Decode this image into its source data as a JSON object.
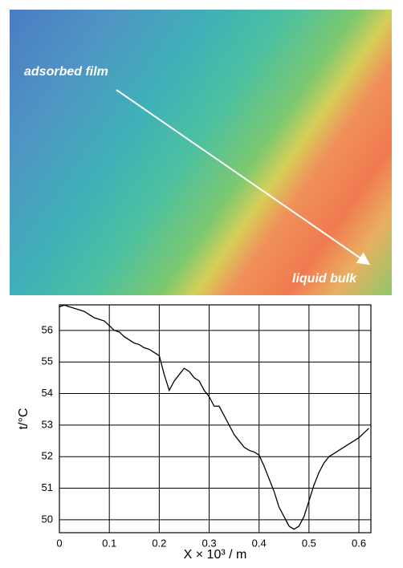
{
  "image": {
    "labels": [
      "adsorbed film",
      "liquid bulk"
    ]
  },
  "chart_data": {
    "type": "line",
    "y_label": "t/°C",
    "x_label": "X × 10³ / m",
    "color": "#000000",
    "grid": true,
    "x": [
      0,
      0.01,
      0.02,
      0.03,
      0.04,
      0.05,
      0.06,
      0.07,
      0.08,
      0.09,
      0.1,
      0.11,
      0.12,
      0.13,
      0.14,
      0.15,
      0.16,
      0.17,
      0.18,
      0.19,
      0.2,
      0.21,
      0.22,
      0.23,
      0.24,
      0.25,
      0.26,
      0.27,
      0.28,
      0.29,
      0.3,
      0.31,
      0.32,
      0.33,
      0.34,
      0.35,
      0.36,
      0.37,
      0.38,
      0.39,
      0.4,
      0.41,
      0.42,
      0.43,
      0.44,
      0.45,
      0.46,
      0.47,
      0.48,
      0.49,
      0.5,
      0.51,
      0.52,
      0.53,
      0.54,
      0.55,
      0.56,
      0.57,
      0.58,
      0.59,
      0.6,
      0.61,
      0.62
    ],
    "values": [
      56.75,
      56.8,
      56.75,
      56.7,
      56.65,
      56.6,
      56.5,
      56.4,
      56.35,
      56.3,
      56.15,
      56.0,
      55.95,
      55.8,
      55.7,
      55.6,
      55.55,
      55.45,
      55.4,
      55.3,
      55.2,
      54.6,
      54.1,
      54.4,
      54.6,
      54.8,
      54.7,
      54.5,
      54.4,
      54.1,
      53.9,
      53.6,
      53.6,
      53.3,
      53.0,
      52.7,
      52.5,
      52.3,
      52.2,
      52.15,
      52.05,
      51.7,
      51.3,
      50.9,
      50.4,
      50.1,
      49.8,
      49.7,
      49.8,
      50.1,
      50.6,
      51.1,
      51.5,
      51.8,
      52.0,
      52.1,
      52.2,
      52.3,
      52.4,
      52.5,
      52.6,
      52.75,
      52.9
    ],
    "xlim": [
      0,
      0.624
    ],
    "ylim": [
      49.59,
      56.81
    ],
    "xticks": [
      0,
      0.1,
      0.2,
      0.3,
      0.4,
      0.5,
      0.6
    ],
    "yticks": [
      50,
      51,
      52,
      53,
      54,
      55,
      56
    ]
  }
}
